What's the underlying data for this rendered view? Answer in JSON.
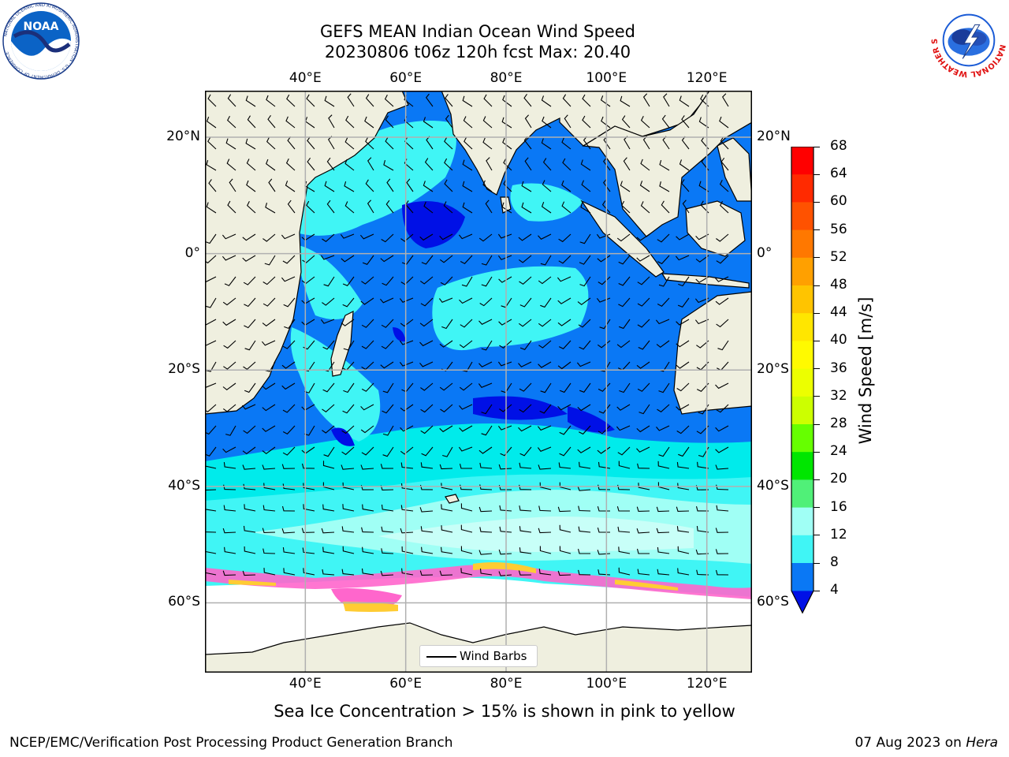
{
  "title_line1": "GEFS MEAN Indian Ocean Wind Speed",
  "title_line2": "20230806 t06z 120h fcst   Max: 20.40",
  "logos": {
    "left": {
      "icon": "noaa-logo-icon",
      "text": "NOAA",
      "ring_text": "NATIONAL OCEANIC AND ATMOSPHERIC ADMINISTRATION · U.S. DEPARTMENT OF COMMERCE"
    },
    "right": {
      "icon": "nws-logo-icon",
      "ring_text": "NATIONAL WEATHER SERVICE"
    }
  },
  "map": {
    "lon_ticks": [
      "40°E",
      "60°E",
      "80°E",
      "100°E",
      "120°E"
    ],
    "lat_ticks": [
      "20°N",
      "0°",
      "20°S",
      "40°S",
      "60°S"
    ],
    "lon_values": [
      40,
      60,
      80,
      100,
      120
    ],
    "lat_values": [
      20,
      0,
      -20,
      -40,
      -60
    ],
    "extent": {
      "lon": [
        20,
        129
      ],
      "lat": [
        -72,
        28
      ]
    },
    "gridlines": true,
    "colors": {
      "land": "#efefdf",
      "ocean_4_8": "#0a78f5",
      "ocean_below_4": "#0010e6",
      "ocean_8_12": "#00ebeb",
      "ocean_12_16": "#40f5f5",
      "ocean_16_20": "#a0fff5",
      "sea_ice_low": "#ff66cc",
      "sea_ice_high": "#ffcc33"
    }
  },
  "colorbar": {
    "label": "Wind Speed [m/s]",
    "ticks": [
      "68",
      "64",
      "60",
      "56",
      "52",
      "48",
      "44",
      "40",
      "36",
      "32",
      "28",
      "24",
      "20",
      "16",
      "12",
      "8",
      "4"
    ],
    "tick_values": [
      68,
      64,
      60,
      56,
      52,
      48,
      44,
      40,
      36,
      32,
      28,
      24,
      20,
      16,
      12,
      8,
      4
    ],
    "colors_top_to_bottom": [
      "#ff0000",
      "#ff2a00",
      "#ff5200",
      "#ff7800",
      "#ffa000",
      "#ffc400",
      "#ffe600",
      "#fffa00",
      "#ecff00",
      "#ccff00",
      "#66ff00",
      "#00e600",
      "#50f078",
      "#a0fff5",
      "#40f5f5",
      "#00f0f0",
      "#0a78f5"
    ],
    "under_color": "#0010e6"
  },
  "legend": {
    "label": "Wind Barbs"
  },
  "caption": "Sea Ice Concentration > 15% is shown in pink to yellow",
  "footer": {
    "credit": "NCEP/EMC/Verification Post Processing Product Generation Branch",
    "date_prefix": "07 Aug 2023 on ",
    "date_host": "Hera"
  }
}
